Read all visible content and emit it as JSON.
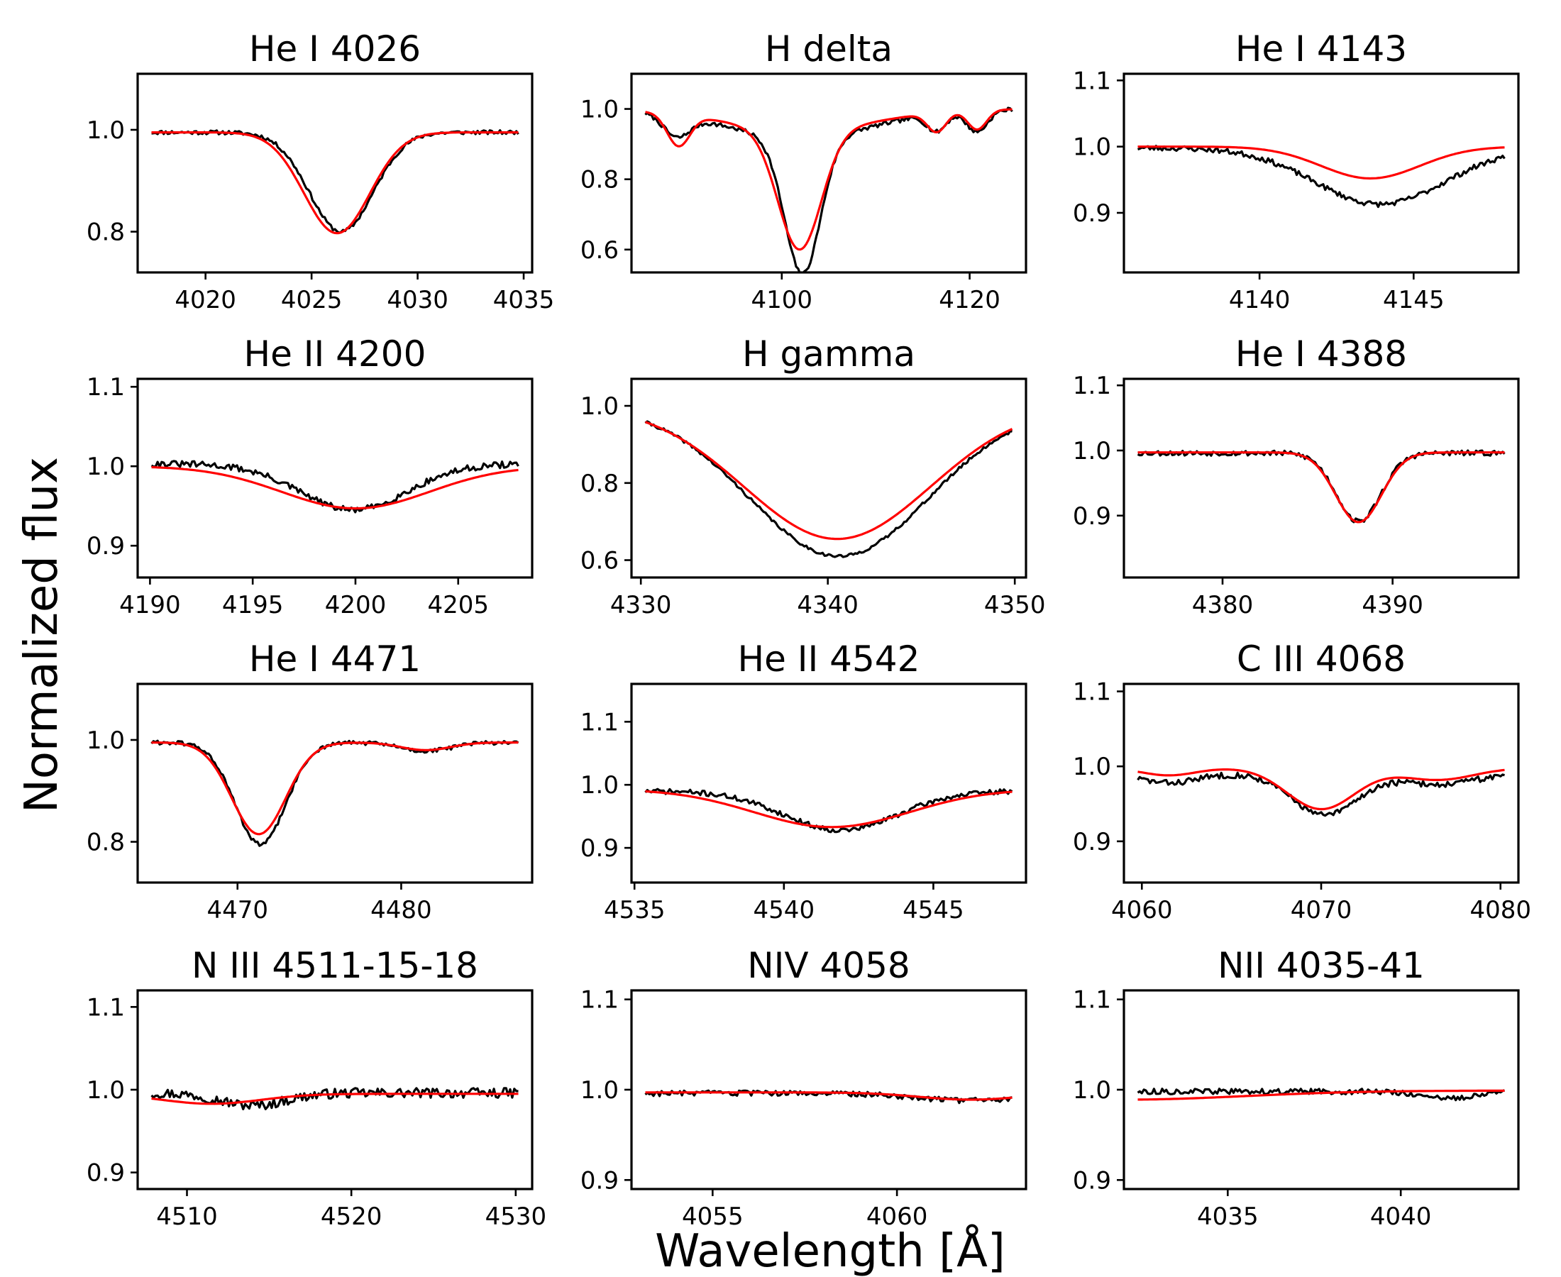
{
  "figure": {
    "ylabel": "Normalized flux",
    "xlabel": "Wavelength [Å]"
  },
  "colors": {
    "observed": "#000000",
    "model": "#ff0000",
    "frame": "#000000"
  },
  "chart_data": [
    {
      "type": "line",
      "title": "He I 4026",
      "xlim": [
        4016.8,
        4035.4
      ],
      "ylim": [
        0.72,
        1.11
      ],
      "xticks": [
        4020,
        4025,
        4030,
        4035
      ],
      "yticks": [
        0.8,
        1.0
      ],
      "ytick_labels": [
        "0.8",
        "1.0"
      ],
      "model": {
        "kind": "gauss",
        "cont": 0.995,
        "center": 4026.2,
        "depth": 0.198,
        "sigma": 1.55
      },
      "observed": {
        "kind": "gauss",
        "cont": 0.995,
        "center": 4026.4,
        "depth": 0.195,
        "sigma": 1.5,
        "noise": 0.004,
        "seed": 11
      }
    },
    {
      "type": "line",
      "title": "H delta",
      "xlim": [
        4084.0,
        4126.0
      ],
      "ylim": [
        0.535,
        1.1
      ],
      "xticks": [
        4100,
        4120
      ],
      "yticks": [
        0.6,
        0.8,
        1.0
      ],
      "ytick_labels": [
        "0.6",
        "0.8",
        "1.0"
      ],
      "model": {
        "kind": "multi",
        "cont": 1.0,
        "tilt": 0.0,
        "lines": [
          {
            "center": 4101.9,
            "depth": 0.34,
            "sigma": 2.3
          },
          {
            "center": 4101.9,
            "depth": 0.06,
            "sigma": 8.0
          },
          {
            "center": 4089.0,
            "depth": 0.09,
            "sigma": 1.2
          },
          {
            "center": 4116.5,
            "depth": 0.055,
            "sigma": 1.0
          },
          {
            "center": 4120.8,
            "depth": 0.055,
            "sigma": 1.0
          }
        ]
      },
      "observed": {
        "kind": "multi",
        "cont": 1.0,
        "tilt": 0.0,
        "noise": 0.006,
        "seed": 7,
        "lines": [
          {
            "center": 4102.2,
            "depth": 0.39,
            "sigma": 1.9
          },
          {
            "center": 4101.9,
            "depth": 0.08,
            "sigma": 8.0
          },
          {
            "center": 4088.8,
            "depth": 0.06,
            "sigma": 1.4
          },
          {
            "center": 4116.5,
            "depth": 0.05,
            "sigma": 1.0
          },
          {
            "center": 4120.8,
            "depth": 0.06,
            "sigma": 1.1
          }
        ]
      }
    },
    {
      "type": "line",
      "title": "He I 4143",
      "xlim": [
        4135.6,
        4148.4
      ],
      "ylim": [
        0.81,
        1.11
      ],
      "xticks": [
        4140,
        4145
      ],
      "yticks": [
        0.9,
        1.0,
        1.1
      ],
      "ytick_labels": [
        "0.9",
        "1.0",
        "1.1"
      ],
      "model": {
        "kind": "gauss",
        "cont": 1.0,
        "center": 4143.6,
        "depth": 0.048,
        "sigma": 1.6
      },
      "observed": {
        "kind": "gauss",
        "cont": 0.998,
        "center": 4143.9,
        "depth": 0.085,
        "sigma": 2.1,
        "noise": 0.004,
        "seed": 23
      }
    },
    {
      "type": "line",
      "title": "He II 4200",
      "xlim": [
        4189.4,
        4208.6
      ],
      "ylim": [
        0.86,
        1.11
      ],
      "xticks": [
        4190,
        4195,
        4200,
        4205
      ],
      "yticks": [
        0.9,
        1.0,
        1.1
      ],
      "ytick_labels": [
        "0.9",
        "1.0",
        "1.1"
      ],
      "model": {
        "kind": "gauss",
        "cont": 1.0,
        "center": 4200.0,
        "depth": 0.053,
        "sigma": 3.6
      },
      "observed": {
        "kind": "gauss",
        "cont": 1.003,
        "center": 4199.9,
        "depth": 0.058,
        "sigma": 2.6,
        "noise": 0.004,
        "seed": 31
      }
    },
    {
      "type": "line",
      "title": "H gamma",
      "xlim": [
        4329.5,
        4350.6
      ],
      "ylim": [
        0.555,
        1.07
      ],
      "xticks": [
        4330,
        4340,
        4350
      ],
      "yticks": [
        0.6,
        0.8,
        1.0
      ],
      "ytick_labels": [
        "0.6",
        "0.8",
        "1.0"
      ],
      "model": {
        "kind": "gauss",
        "cont": 1.0,
        "center": 4340.5,
        "depth": 0.345,
        "sigma": 5.0
      },
      "observed": {
        "kind": "gauss",
        "cont": 0.995,
        "center": 4340.6,
        "depth": 0.385,
        "sigma": 4.8,
        "noise": 0.004,
        "seed": 41
      }
    },
    {
      "type": "line",
      "title": "He I 4388",
      "xlim": [
        4374.2,
        4397.4
      ],
      "ylim": [
        0.805,
        1.11
      ],
      "xticks": [
        4380,
        4390
      ],
      "yticks": [
        0.9,
        1.0,
        1.1
      ],
      "ytick_labels": [
        "0.9",
        "1.0",
        "1.1"
      ],
      "model": {
        "kind": "gauss",
        "cont": 0.997,
        "center": 4388.0,
        "depth": 0.107,
        "sigma": 1.35
      },
      "observed": {
        "kind": "gauss",
        "cont": 0.996,
        "center": 4388.0,
        "depth": 0.105,
        "sigma": 1.3,
        "noise": 0.004,
        "seed": 53
      }
    },
    {
      "type": "line",
      "title": "He I 4471",
      "xlim": [
        4463.9,
        4488.0
      ],
      "ylim": [
        0.72,
        1.11
      ],
      "xticks": [
        4470,
        4480
      ],
      "yticks": [
        0.8,
        1.0
      ],
      "ytick_labels": [
        "0.8",
        "1.0"
      ],
      "model": {
        "kind": "multi",
        "cont": 0.995,
        "tilt": 0.0,
        "lines": [
          {
            "center": 4471.3,
            "depth": 0.18,
            "sigma": 1.65
          },
          {
            "center": 4481.5,
            "depth": 0.015,
            "sigma": 1.5
          }
        ]
      },
      "observed": {
        "kind": "multi",
        "cont": 0.995,
        "tilt": 0.0,
        "noise": 0.004,
        "seed": 61,
        "lines": [
          {
            "center": 4471.4,
            "depth": 0.2,
            "sigma": 1.55
          },
          {
            "center": 4481.5,
            "depth": 0.017,
            "sigma": 1.5
          }
        ]
      }
    },
    {
      "type": "line",
      "title": "He II 4542",
      "xlim": [
        4534.9,
        4548.1
      ],
      "ylim": [
        0.845,
        1.16
      ],
      "xticks": [
        4535,
        4540,
        4545
      ],
      "yticks": [
        0.9,
        1.0,
        1.1
      ],
      "ytick_labels": [
        "0.9",
        "1.0",
        "1.1"
      ],
      "model": {
        "kind": "gauss",
        "cont": 0.993,
        "center": 4541.6,
        "depth": 0.06,
        "sigma": 2.6
      },
      "observed": {
        "kind": "gauss",
        "cont": 0.99,
        "center": 4541.9,
        "depth": 0.062,
        "sigma": 1.9,
        "noise": 0.004,
        "seed": 71
      }
    },
    {
      "type": "line",
      "title": "C III 4068",
      "xlim": [
        4059.0,
        4081.0
      ],
      "ylim": [
        0.845,
        1.11
      ],
      "xticks": [
        4060,
        4070,
        4080
      ],
      "yticks": [
        0.9,
        1.0,
        1.1
      ],
      "ytick_labels": [
        "0.9",
        "1.0",
        "1.1"
      ],
      "model": {
        "kind": "multi",
        "cont": 0.998,
        "tilt": 0.0,
        "lines": [
          {
            "center": 4070.0,
            "depth": 0.055,
            "sigma": 1.9
          },
          {
            "center": 4061.5,
            "depth": 0.01,
            "sigma": 1.5
          },
          {
            "center": 4076.5,
            "depth": 0.016,
            "sigma": 2.0
          }
        ]
      },
      "observed": {
        "kind": "multi",
        "cont": 0.99,
        "tilt": 0.0,
        "noise": 0.004,
        "seed": 83,
        "lines": [
          {
            "center": 4070.2,
            "depth": 0.055,
            "sigma": 1.8
          },
          {
            "center": 4061.5,
            "depth": 0.012,
            "sigma": 1.5
          },
          {
            "center": 4076.5,
            "depth": 0.014,
            "sigma": 2.0
          }
        ]
      }
    },
    {
      "type": "line",
      "title": "N III 4511-15-18",
      "xlim": [
        4507.0,
        4531.0
      ],
      "ylim": [
        0.88,
        1.12
      ],
      "xticks": [
        4510,
        4520,
        4530
      ],
      "yticks": [
        0.9,
        1.0,
        1.1
      ],
      "ytick_labels": [
        "0.9",
        "1.0",
        "1.1"
      ],
      "model": {
        "kind": "gauss",
        "cont": 0.995,
        "center": 4511.5,
        "depth": 0.012,
        "sigma": 3.0
      },
      "observed": {
        "kind": "gauss",
        "cont": 0.996,
        "center": 4514.0,
        "depth": 0.015,
        "sigma": 2.0,
        "noise": 0.006,
        "seed": 97
      }
    },
    {
      "type": "line",
      "title": "NIV 4058",
      "xlim": [
        4052.8,
        4063.5
      ],
      "ylim": [
        0.89,
        1.11
      ],
      "xticks": [
        4055,
        4060
      ],
      "yticks": [
        0.9,
        1.0,
        1.1
      ],
      "ytick_labels": [
        "0.9",
        "1.0",
        "1.1"
      ],
      "model": {
        "kind": "gauss",
        "cont": 0.997,
        "center": 4062.0,
        "depth": 0.008,
        "sigma": 1.4
      },
      "observed": {
        "kind": "gauss",
        "cont": 0.996,
        "center": 4062.0,
        "depth": 0.008,
        "sigma": 1.4,
        "noise": 0.003,
        "seed": 103
      }
    },
    {
      "type": "line",
      "title": "NII 4035-41",
      "xlim": [
        4032.0,
        4043.4
      ],
      "ylim": [
        0.89,
        1.11
      ],
      "xticks": [
        4035,
        4040
      ],
      "yticks": [
        0.9,
        1.0,
        1.1
      ],
      "ytick_labels": [
        "0.9",
        "1.0",
        "1.1"
      ],
      "model": {
        "kind": "gauss",
        "cont": 0.999,
        "center": 4032.0,
        "depth": 0.01,
        "sigma": 3.5
      },
      "observed": {
        "kind": "gauss",
        "cont": 0.998,
        "center": 4041.3,
        "depth": 0.008,
        "sigma": 0.7,
        "noise": 0.003,
        "seed": 113
      }
    }
  ]
}
